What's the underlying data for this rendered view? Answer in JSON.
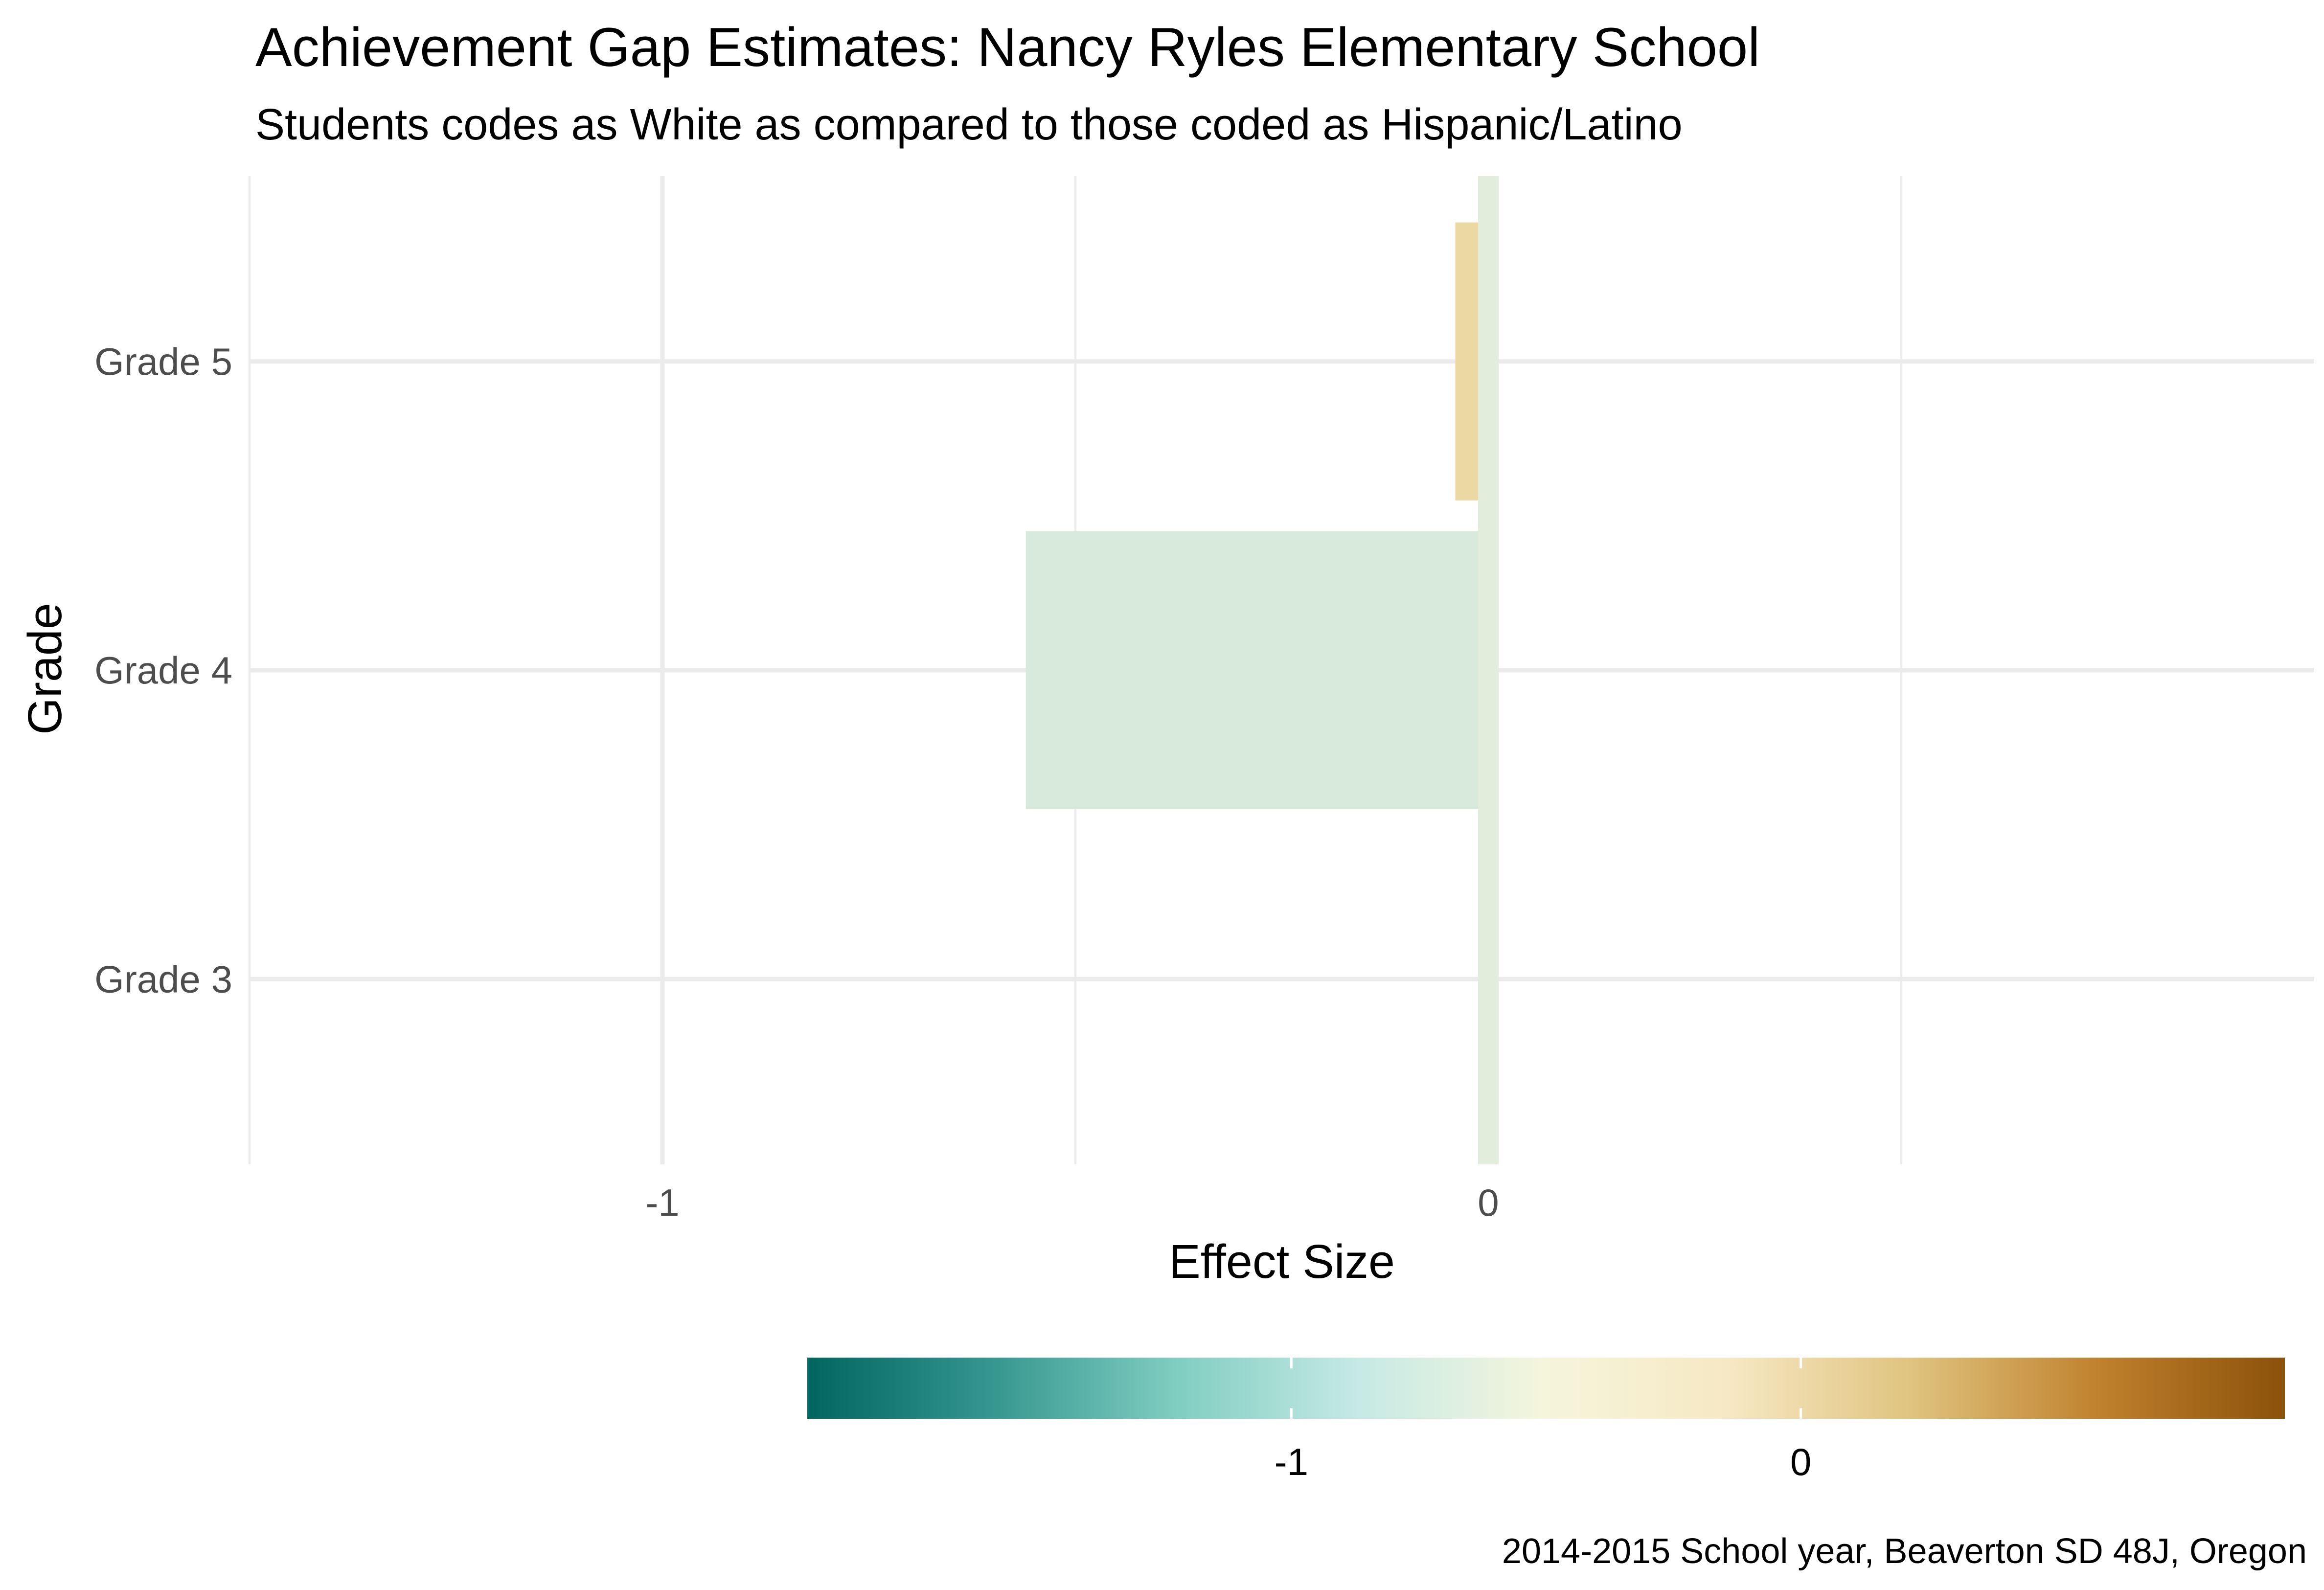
{
  "chart_data": {
    "type": "bar",
    "orientation": "horizontal",
    "title": "Achievement Gap Estimates: Nancy Ryles Elementary School",
    "subtitle": "Students codes as White as compared to those coded as Hispanic/Latino",
    "xlabel": "Effect Size",
    "ylabel": "Grade",
    "caption": "2014-2015 School year, Beaverton SD 48J, Oregon",
    "categories": [
      "Grade 3",
      "Grade 4",
      "Grade 5"
    ],
    "values": [
      -0.01,
      -0.56,
      -0.04
    ],
    "bar_colors": [
      "#f0deb1",
      "#d8eadb",
      "#ecd8a2"
    ],
    "xlim": [
      -1.5,
      1.0
    ],
    "x_ticks": [
      -1,
      0
    ],
    "x_tick_labels": [
      "-1",
      "0"
    ],
    "grid": true,
    "reference_line": {
      "value": 0,
      "color": "#e2eddb"
    },
    "legend": {
      "position": "bottom",
      "type": "colorbar",
      "range": [
        -1.95,
        0.95
      ],
      "ticks": [
        -1,
        0
      ],
      "tick_labels": [
        "-1",
        "0"
      ],
      "palette": [
        "#01665e",
        "#35978f",
        "#80cdc1",
        "#c7eae5",
        "#f5f5dc",
        "#f6e8c3",
        "#dfc27d",
        "#bf812d",
        "#8c510a"
      ]
    }
  }
}
